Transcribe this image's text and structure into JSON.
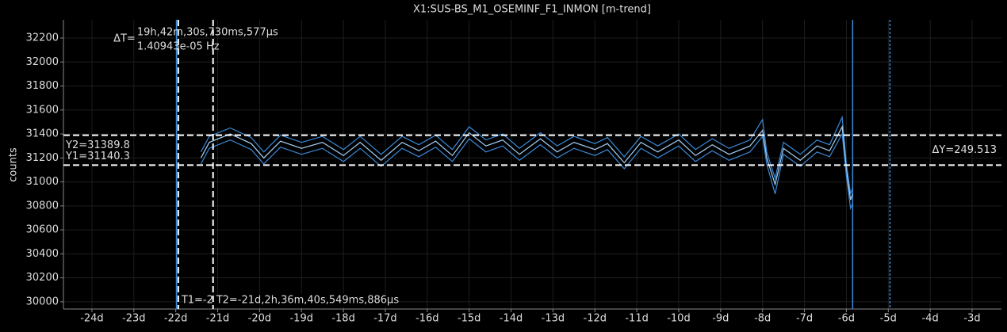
{
  "chart_data": {
    "type": "line",
    "title": "X1:SUS-BS_M1_OSEMINF_F1_INMON [m-trend]",
    "y_label": "counts",
    "xlim": [
      -24.68,
      -2.3
    ],
    "ylim": [
      29940,
      32352
    ],
    "xticks": [
      {
        "value": -24,
        "label": "-24d"
      },
      {
        "value": -23,
        "label": "-23d"
      },
      {
        "value": -22,
        "label": "-22d"
      },
      {
        "value": -21,
        "label": "-21d"
      },
      {
        "value": -20,
        "label": "-20d"
      },
      {
        "value": -19,
        "label": "-19d"
      },
      {
        "value": -18,
        "label": "-18d"
      },
      {
        "value": -17,
        "label": "-17d"
      },
      {
        "value": -16,
        "label": "-16d"
      },
      {
        "value": -15,
        "label": "-15d"
      },
      {
        "value": -14,
        "label": "-14d"
      },
      {
        "value": -13,
        "label": "-13d"
      },
      {
        "value": -12,
        "label": "-12d"
      },
      {
        "value": -11,
        "label": "-11d"
      },
      {
        "value": -10,
        "label": "-10d"
      },
      {
        "value": -9,
        "label": "-9d"
      },
      {
        "value": -8,
        "label": "-8d"
      },
      {
        "value": -7,
        "label": "-7d"
      },
      {
        "value": -6,
        "label": "-6d"
      },
      {
        "value": -5,
        "label": "-5d"
      },
      {
        "value": -4,
        "label": "-4d"
      },
      {
        "value": -3,
        "label": "-3d"
      }
    ],
    "yticks": [
      30000,
      30200,
      30400,
      30600,
      30800,
      31000,
      31200,
      31400,
      31600,
      31800,
      32000,
      32200
    ],
    "grid": true,
    "x": [
      -21.4,
      -21.2,
      -20.7,
      -20.2,
      -19.9,
      -19.5,
      -19.0,
      -18.5,
      -18.0,
      -17.6,
      -17.1,
      -16.6,
      -16.2,
      -15.8,
      -15.4,
      -15.0,
      -14.6,
      -14.2,
      -13.8,
      -13.3,
      -12.9,
      -12.5,
      -12.0,
      -11.7,
      -11.3,
      -10.9,
      -10.5,
      -10.0,
      -9.6,
      -9.2,
      -8.8,
      -8.3,
      -8.0,
      -7.9,
      -7.7,
      -7.5,
      -7.1,
      -6.7,
      -6.4,
      -6.1,
      -6.0,
      -5.9,
      -5.85
    ],
    "series": [
      {
        "color": "#3a8ad8",
        "values": [
          31250,
          31380,
          31450,
          31370,
          31250,
          31390,
          31330,
          31380,
          31270,
          31380,
          31230,
          31380,
          31310,
          31390,
          31270,
          31460,
          31350,
          31400,
          31280,
          31410,
          31300,
          31380,
          31320,
          31370,
          31210,
          31380,
          31300,
          31400,
          31270,
          31360,
          31280,
          31350,
          31520,
          31250,
          31030,
          31330,
          31230,
          31350,
          31310,
          31540,
          31150,
          30900,
          30950
        ]
      },
      {
        "color": "#a8d0f4",
        "values": [
          31200,
          31330,
          31400,
          31320,
          31200,
          31340,
          31280,
          31330,
          31220,
          31330,
          31180,
          31330,
          31260,
          31340,
          31220,
          31410,
          31300,
          31350,
          31230,
          31360,
          31250,
          31330,
          31270,
          31320,
          31160,
          31330,
          31250,
          31350,
          31220,
          31310,
          31230,
          31300,
          31430,
          31200,
          30980,
          31280,
          31180,
          31300,
          31260,
          31460,
          31100,
          30850,
          30900
        ]
      },
      {
        "color": "#3a8ad8",
        "values": [
          31150,
          31280,
          31350,
          31270,
          31150,
          31290,
          31230,
          31280,
          31170,
          31280,
          31130,
          31280,
          31210,
          31290,
          31170,
          31360,
          31250,
          31300,
          31180,
          31310,
          31200,
          31280,
          31220,
          31270,
          31110,
          31280,
          31200,
          31300,
          31170,
          31260,
          31180,
          31250,
          31380,
          31150,
          30900,
          31230,
          31130,
          31250,
          31210,
          31400,
          31050,
          30780,
          30820
        ]
      }
    ],
    "markers": [
      {
        "value": -21.98,
        "color": "#3a8ad8",
        "dashed": false
      },
      {
        "value": -5.85,
        "color": "#3a8ad8",
        "dashed": false
      },
      {
        "value": -4.96,
        "color": "#3a8ad8",
        "dashed": true
      }
    ],
    "cursors": {
      "t1": -21.94,
      "t2": -21.11,
      "y1": 31140.3,
      "y2": 31389.8,
      "t1_label": "T1=-2",
      "t2_label": "T2=-21d,2h,36m,40s,549ms,886µs",
      "y1_label": "Y1=31140.3",
      "y2_label": "Y2=31389.8",
      "dt_prefix": "ΔT=",
      "dt_label": "19h,42m,30s,730ms,577µs",
      "df_label": "1.40943e-05 Hz",
      "dy_label": "ΔY=249.513"
    }
  }
}
